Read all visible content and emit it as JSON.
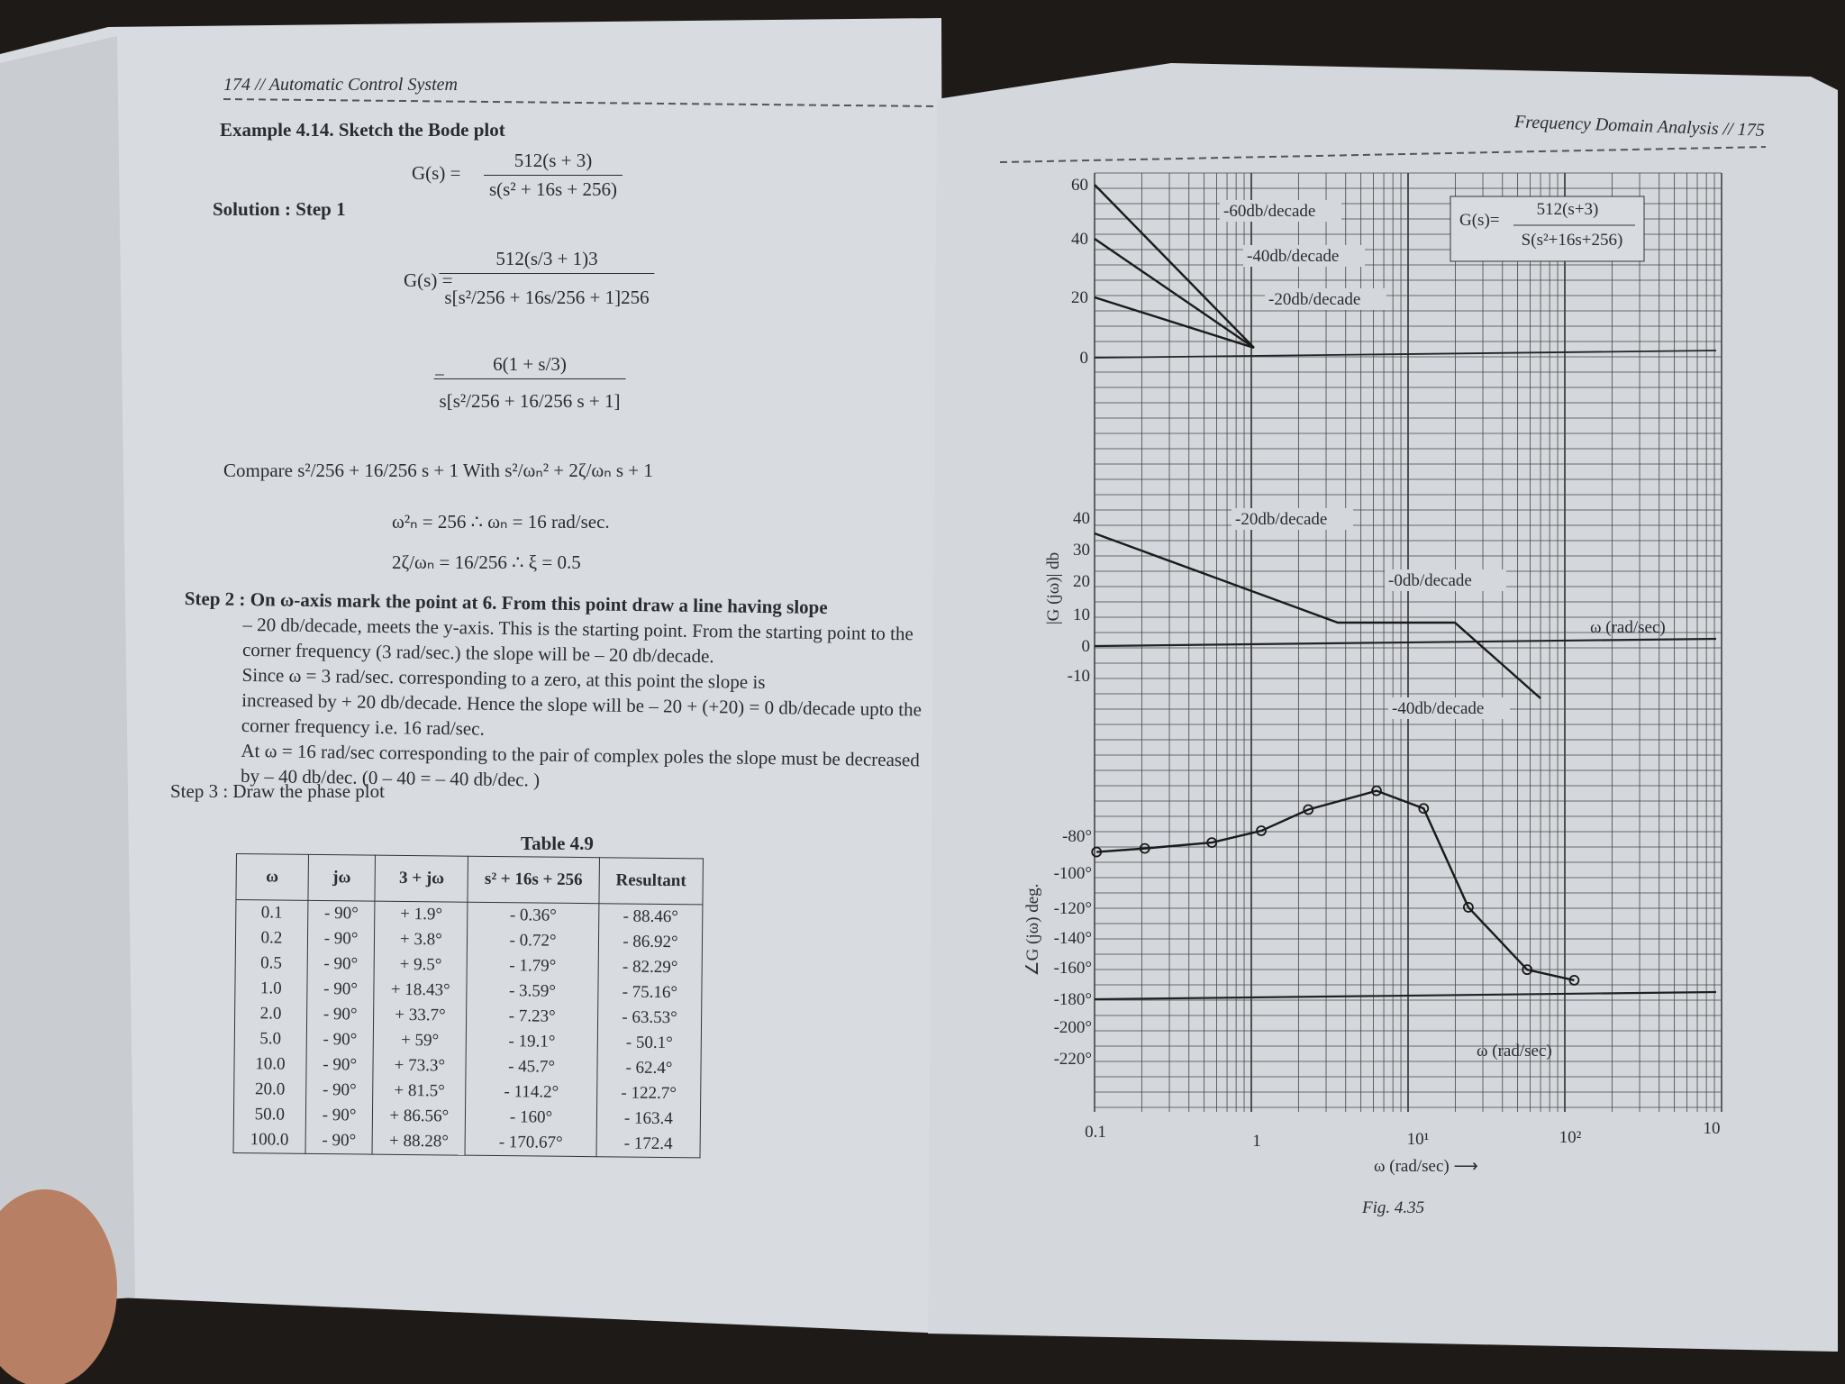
{
  "left_page": {
    "header": "174 // Automatic Control System",
    "example_title": "Example 4.14. Sketch the Bode plot",
    "eq1": {
      "lhs": "G(s) =",
      "num": "512(s + 3)",
      "den": "s(s² + 16s + 256)"
    },
    "solution": "Solution : Step 1",
    "eq2": {
      "lhs": "G(s) =",
      "num": "512(s/3 + 1)3",
      "den": "s[s²/256 + 16s/256 + 1]256"
    },
    "eq3": {
      "lhs": "=",
      "num": "6(1 + s/3)",
      "den": "s[s²/256 + 16/256 s + 1]"
    },
    "compare": "Compare s²/256 + 16/256 s + 1 With s²/ωₙ² + 2ζ/ωₙ s + 1",
    "omega_n": "ω²ₙ = 256 ∴ ωₙ = 16 rad/sec.",
    "zeta": "2ζ/ωₙ = 16/256 ∴ ξ = 0.5",
    "step2": [
      "Step 2 : On ω-axis mark the point at 6. From this point draw a line having slope",
      "– 20 db/decade, meets the y-axis. This is the starting point. From the starting point to the",
      "corner frequency (3 rad/sec.) the slope will be – 20 db/decade.",
      "Since ω = 3 rad/sec. corresponding to a zero, at this point the slope is",
      "increased by + 20 db/decade. Hence the slope will be – 20 + (+20) = 0 db/decade upto the",
      "corner frequency i.e. 16 rad/sec.",
      "At ω = 16 rad/sec corresponding to the pair of complex poles the slope must be decreased",
      "by – 40 db/dec. (0 – 40 = – 40 db/dec. )"
    ],
    "step3": "Step 3 : Draw the phase plot",
    "table": {
      "caption": "Table 4.9",
      "headers": [
        "ω",
        "jω",
        "3 + jω",
        "s² + 16s + 256",
        "Resultant"
      ],
      "rows": [
        [
          "0.1",
          "- 90°",
          "+ 1.9°",
          "- 0.36°",
          "- 88.46°"
        ],
        [
          "0.2",
          "- 90°",
          "+ 3.8°",
          "- 0.72°",
          "- 86.92°"
        ],
        [
          "0.5",
          "- 90°",
          "+ 9.5°",
          "- 1.79°",
          "- 82.29°"
        ],
        [
          "1.0",
          "- 90°",
          "+ 18.43°",
          "- 3.59°",
          "- 75.16°"
        ],
        [
          "2.0",
          "- 90°",
          "+ 33.7°",
          "- 7.23°",
          "- 63.53°"
        ],
        [
          "5.0",
          "- 90°",
          "+ 59°",
          "- 19.1°",
          "- 50.1°"
        ],
        [
          "10.0",
          "- 90°",
          "+ 73.3°",
          "- 45.7°",
          "- 62.4°"
        ],
        [
          "20.0",
          "- 90°",
          "+ 81.5°",
          "- 114.2°",
          "- 122.7°"
        ],
        [
          "50.0",
          "- 90°",
          "+ 86.56°",
          "- 160°",
          "- 163.4"
        ],
        [
          "100.0",
          "- 90°",
          "+ 88.28°",
          "- 170.67°",
          "- 172.4"
        ]
      ]
    }
  },
  "right_page": {
    "header": "Frequency Domain Analysis // 175",
    "figure": {
      "top_ticks": [
        "60",
        "40",
        "20",
        "0"
      ],
      "top_slopes": [
        "-60db/decade",
        "-40db/decade",
        "-20db/decade"
      ],
      "tf": {
        "lhs": "G(s)=",
        "num": "512(s+3)",
        "den": "S(s²+16s+256)"
      },
      "mag_ticks": [
        "40",
        "30",
        "20",
        "10",
        "0",
        "-10"
      ],
      "mag_slopes": [
        "-20db/decade",
        "-0db/decade",
        "-40db/decade"
      ],
      "mag_axis": "ω (rad/sec)",
      "mag_ylabel": "|G (jω)| db",
      "phase_ticks": [
        "-80°",
        "-100°",
        "-120°",
        "-140°",
        "-160°",
        "-180°",
        "-200°",
        "-220°"
      ],
      "phase_ylabel": "∠G (jω) deg.",
      "phase_axis": "ω (rad/sec)",
      "x_ticks": [
        "0.1",
        "1",
        "10¹",
        "10²",
        "10"
      ],
      "x_label": "ω (rad/sec) ⟶",
      "caption": "Fig. 4.35"
    }
  }
}
